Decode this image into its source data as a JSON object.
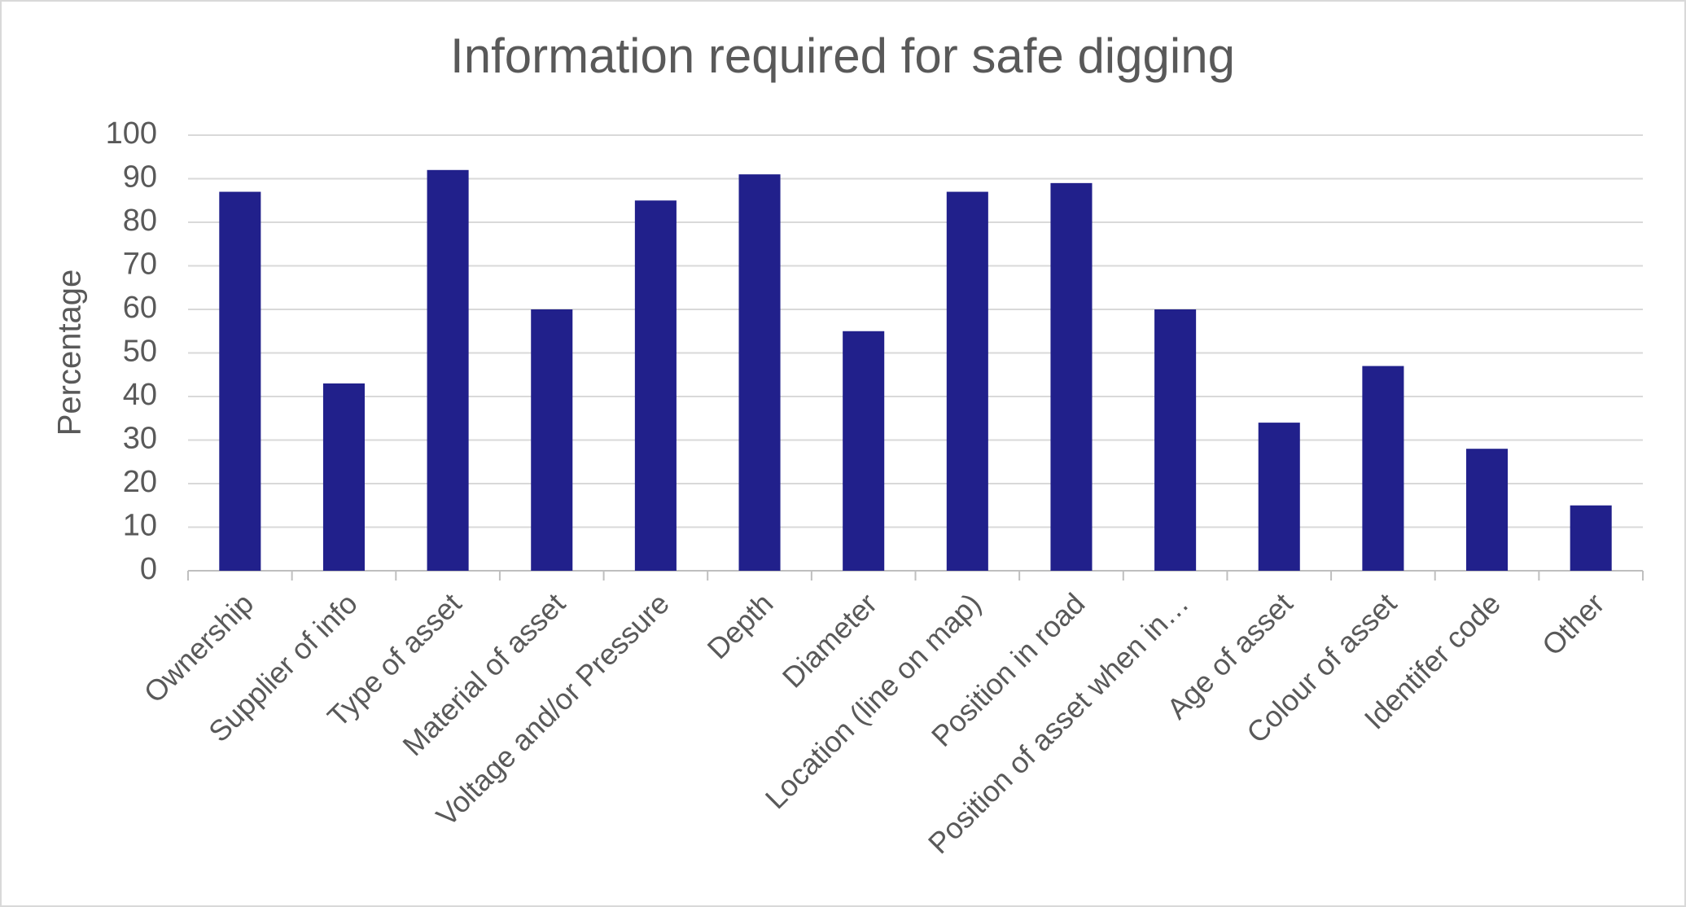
{
  "chart_data": {
    "type": "bar",
    "title": "Information required for safe digging",
    "y_label": "Percentage",
    "categories": [
      "Ownership",
      "Supplier of info",
      "Type of asset",
      "Material of asset",
      "Voltage and/or Pressure",
      "Depth",
      "Diameter",
      "Location (line on map)",
      "Position in road",
      "Position of asset when in…",
      "Age of asset",
      "Colour of asset",
      "Identifer code",
      "Other"
    ],
    "values": [
      87,
      43,
      92,
      60,
      85,
      91,
      55,
      87,
      89,
      60,
      34,
      47,
      28,
      15
    ],
    "color": "#21208b",
    "ylim": [
      0,
      100
    ],
    "yticks": [
      0,
      10,
      20,
      30,
      40,
      50,
      60,
      70,
      80,
      90,
      100
    ],
    "grid": true
  }
}
